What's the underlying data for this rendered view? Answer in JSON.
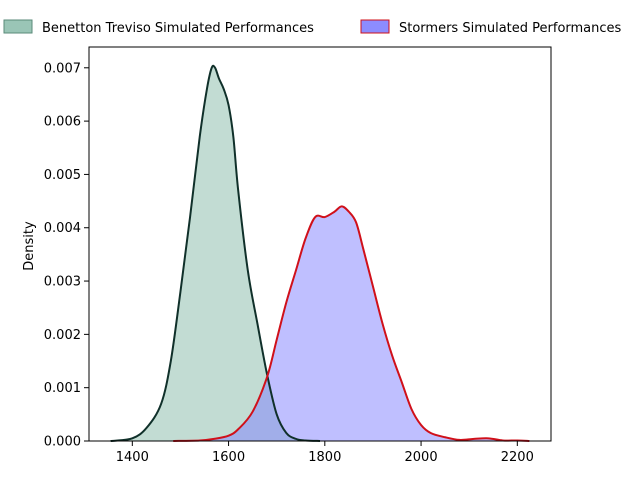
{
  "chart_data": {
    "type": "area",
    "title": "",
    "xlabel": "",
    "ylabel": "Density",
    "xlim": [
      1310,
      2270
    ],
    "ylim": [
      0,
      0.00739
    ],
    "x_ticks": [
      1400,
      1600,
      1800,
      2000,
      2200
    ],
    "y_ticks": [
      0.0,
      0.001,
      0.002,
      0.003,
      0.004,
      0.005,
      0.006,
      0.007
    ],
    "y_tick_labels": [
      "0.000",
      "0.001",
      "0.002",
      "0.003",
      "0.004",
      "0.005",
      "0.006",
      "0.007"
    ],
    "grid": false,
    "legend_position": "top-center",
    "series": [
      {
        "name": "Benetton Treviso Simulated Performances",
        "fill_color": "#8fbfae",
        "line_color": "#10302a",
        "x": [
          1355,
          1400,
          1430,
          1460,
          1480,
          1500,
          1520,
          1540,
          1555,
          1565,
          1572,
          1580,
          1590,
          1600,
          1610,
          1620,
          1640,
          1660,
          1680,
          1700,
          1720,
          1740,
          1760,
          1790
        ],
        "y": [
          0.0,
          5e-05,
          0.00025,
          0.0007,
          0.0015,
          0.0028,
          0.0042,
          0.0057,
          0.0066,
          0.007,
          0.007,
          0.0068,
          0.0066,
          0.0063,
          0.0057,
          0.0047,
          0.0032,
          0.0022,
          0.00125,
          0.0005,
          0.00015,
          4e-05,
          1e-05,
          0.0
        ]
      },
      {
        "name": "Stormers Simulated Performances",
        "fill_color": "#8080ff",
        "line_color": "#d0101a",
        "x": [
          1485,
          1540,
          1570,
          1600,
          1620,
          1650,
          1680,
          1700,
          1720,
          1740,
          1760,
          1780,
          1800,
          1820,
          1835,
          1850,
          1865,
          1880,
          1900,
          1920,
          1940,
          1960,
          1980,
          2000,
          2020,
          2050,
          2080,
          2110,
          2140,
          2170,
          2200,
          2225
        ],
        "y": [
          0.0,
          1e-05,
          4e-05,
          0.0001,
          0.00022,
          0.00055,
          0.0012,
          0.0019,
          0.0026,
          0.0032,
          0.0038,
          0.0042,
          0.0042,
          0.0043,
          0.0044,
          0.0043,
          0.0041,
          0.0036,
          0.0029,
          0.0022,
          0.0016,
          0.0011,
          0.0006,
          0.0003,
          0.00015,
          7e-05,
          2e-05,
          4e-05,
          5e-05,
          1e-05,
          1e-05,
          0.0
        ]
      }
    ]
  }
}
